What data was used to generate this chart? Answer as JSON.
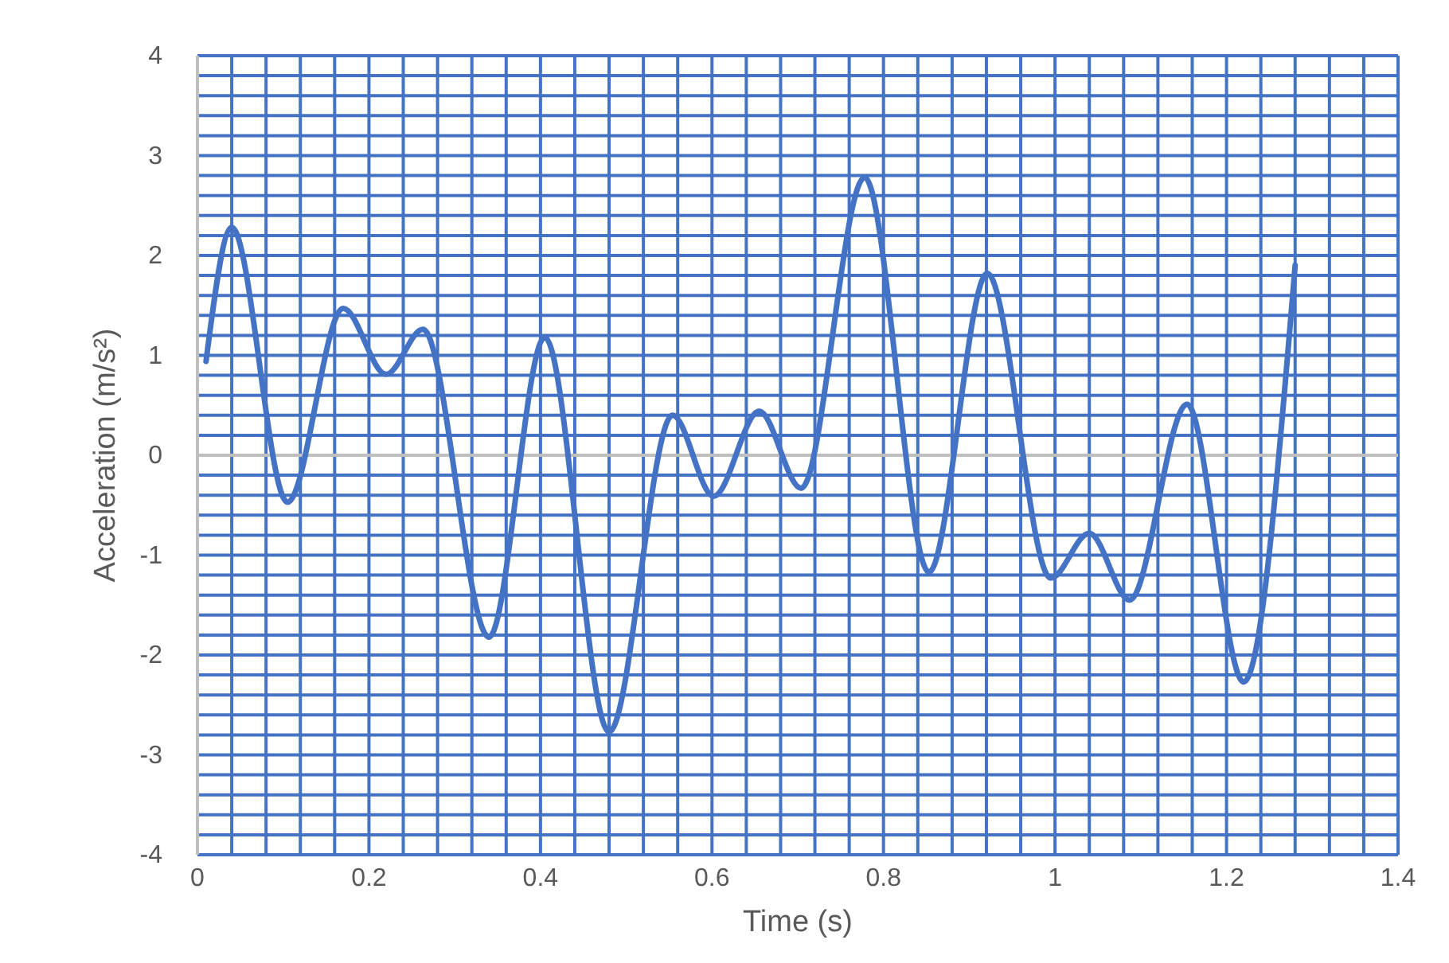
{
  "chart_data": {
    "type": "line",
    "xlabel": "Time (s)",
    "ylabel": "Acceleration (m/s²)",
    "xlim": [
      0,
      1.4
    ],
    "ylim": [
      -4,
      4
    ],
    "xticks": [
      0,
      {
        "value": 0.04,
        "label": null
      },
      {
        "value": 0.08,
        "label": null
      },
      {
        "value": 0.12,
        "label": null
      },
      {
        "value": 0.16,
        "label": null
      },
      0.2,
      {
        "value": 0.24,
        "label": null
      },
      {
        "value": 0.28,
        "label": null
      },
      {
        "value": 0.32,
        "label": null
      },
      {
        "value": 0.36,
        "label": null
      },
      0.4,
      {
        "value": 0.44,
        "label": null
      },
      {
        "value": 0.48,
        "label": null
      },
      {
        "value": 0.52,
        "label": null
      },
      {
        "value": 0.56,
        "label": null
      },
      0.6,
      {
        "value": 0.64,
        "label": null
      },
      {
        "value": 0.68,
        "label": null
      },
      {
        "value": 0.72,
        "label": null
      },
      {
        "value": 0.76,
        "label": null
      },
      0.8,
      {
        "value": 0.84,
        "label": null
      },
      {
        "value": 0.88,
        "label": null
      },
      {
        "value": 0.92,
        "label": null
      },
      {
        "value": 0.96,
        "label": null
      },
      1,
      {
        "value": 1.04,
        "label": null
      },
      {
        "value": 1.08,
        "label": null
      },
      {
        "value": 1.12,
        "label": null
      },
      {
        "value": 1.16,
        "label": null
      },
      1.2,
      {
        "value": 1.24,
        "label": null
      },
      {
        "value": 1.28,
        "label": null
      },
      {
        "value": 1.32,
        "label": null
      },
      {
        "value": 1.36,
        "label": null
      },
      1.4
    ],
    "yticks": [
      -4,
      {
        "value": -3.8,
        "label": null
      },
      {
        "value": -3.6,
        "label": null
      },
      {
        "value": -3.4,
        "label": null
      },
      {
        "value": -3.2,
        "label": null
      },
      -3,
      {
        "value": -2.8,
        "label": null
      },
      {
        "value": -2.6,
        "label": null
      },
      {
        "value": -2.4,
        "label": null
      },
      {
        "value": -2.2,
        "label": null
      },
      -2,
      {
        "value": -1.8,
        "label": null
      },
      {
        "value": -1.6,
        "label": null
      },
      {
        "value": -1.4,
        "label": null
      },
      {
        "value": -1.2,
        "label": null
      },
      -1,
      {
        "value": -0.8,
        "label": null
      },
      {
        "value": -0.6,
        "label": null
      },
      {
        "value": -0.4,
        "label": null
      },
      {
        "value": -0.2,
        "label": null
      },
      0,
      {
        "value": 0.2,
        "label": null
      },
      {
        "value": 0.4,
        "label": null
      },
      {
        "value": 0.6,
        "label": null
      },
      {
        "value": 0.8,
        "label": null
      },
      1,
      {
        "value": 1.2,
        "label": null
      },
      {
        "value": 1.4,
        "label": null
      },
      {
        "value": 1.6,
        "label": null
      },
      {
        "value": 1.8,
        "label": null
      },
      2,
      {
        "value": 2.2,
        "label": null
      },
      {
        "value": 2.4,
        "label": null
      },
      {
        "value": 2.6,
        "label": null
      },
      {
        "value": 2.8,
        "label": null
      },
      3,
      {
        "value": 3.2,
        "label": null
      },
      {
        "value": 3.4,
        "label": null
      },
      {
        "value": 3.6,
        "label": null
      },
      {
        "value": 3.8,
        "label": null
      },
      4
    ],
    "grid": true,
    "marker": "none",
    "line_style": "solid",
    "series": [
      {
        "color": "#4472c4",
        "x": [
          0.01,
          0.04,
          0.105,
          0.17,
          0.22,
          0.263,
          0.34,
          0.405,
          0.48,
          0.554,
          0.602,
          0.655,
          0.704,
          0.778,
          0.853,
          0.921,
          0.995,
          1.04,
          1.087,
          1.154,
          1.22,
          1.28
        ],
        "values": [
          0.94,
          2.28,
          -0.47,
          1.47,
          0.81,
          1.26,
          -1.82,
          1.18,
          -2.77,
          0.4,
          -0.41,
          0.44,
          -0.33,
          2.78,
          -1.17,
          1.82,
          -1.23,
          -0.78,
          -1.45,
          0.51,
          -2.27,
          1.9
        ]
      }
    ]
  }
}
